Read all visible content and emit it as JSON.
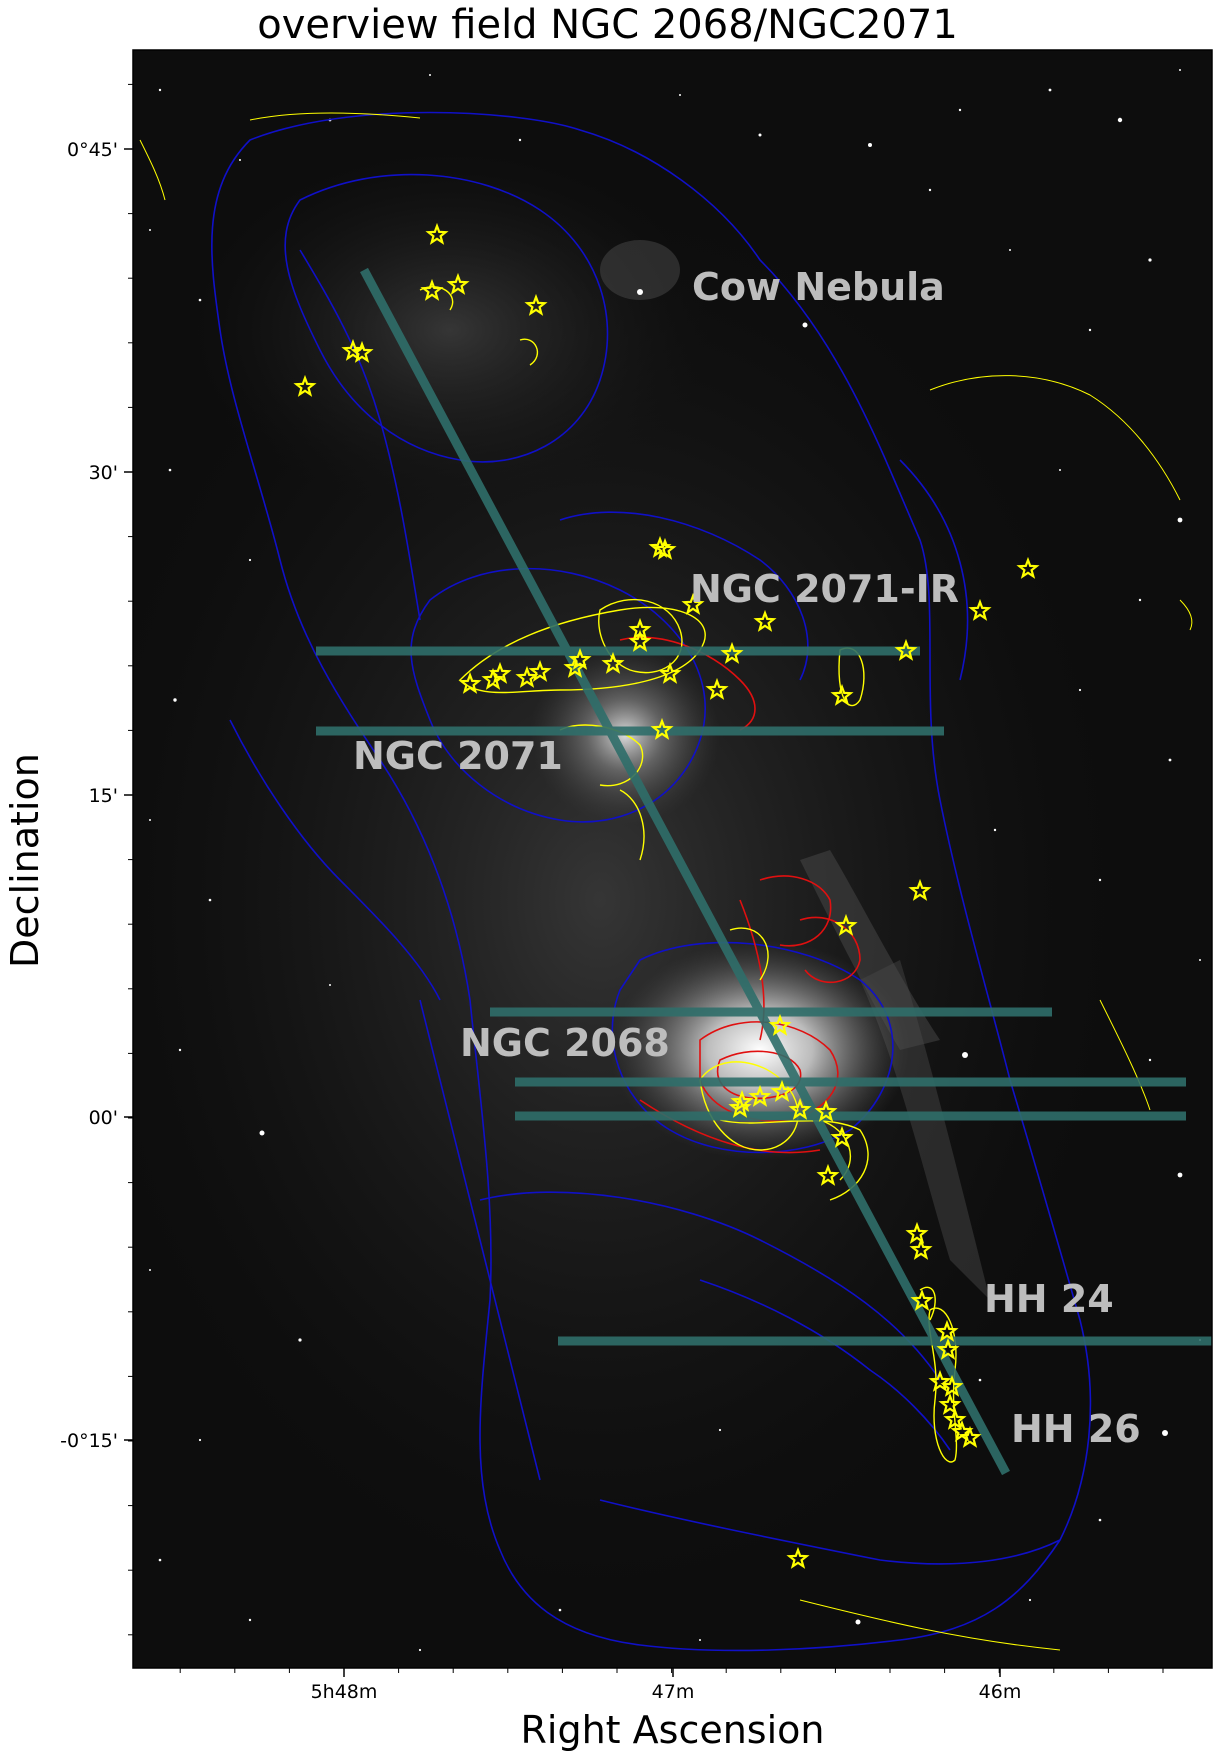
{
  "figure": {
    "title": "overview field NGC 2068/NGC2071",
    "xlabel": "Right Ascension",
    "ylabel": "Declination",
    "ra_ticks": [
      "5h48m",
      "47m",
      "46m"
    ],
    "dec_ticks": [
      "0°45'",
      "30'",
      "15'",
      "00'",
      "-0°15'"
    ],
    "region_labels": [
      "Cow Nebula",
      "NGC 2071-IR",
      "NGC 2071",
      "NGC 2068",
      "HH 24",
      "HH 26"
    ]
  },
  "colors": {
    "background": "#0d0d0d",
    "contour_blue": "#1010c8",
    "contour_yellow": "#ffff00",
    "contour_red": "#e01010",
    "star_marker": "#ffff00",
    "slit_teal": "#2f6e6a"
  }
}
